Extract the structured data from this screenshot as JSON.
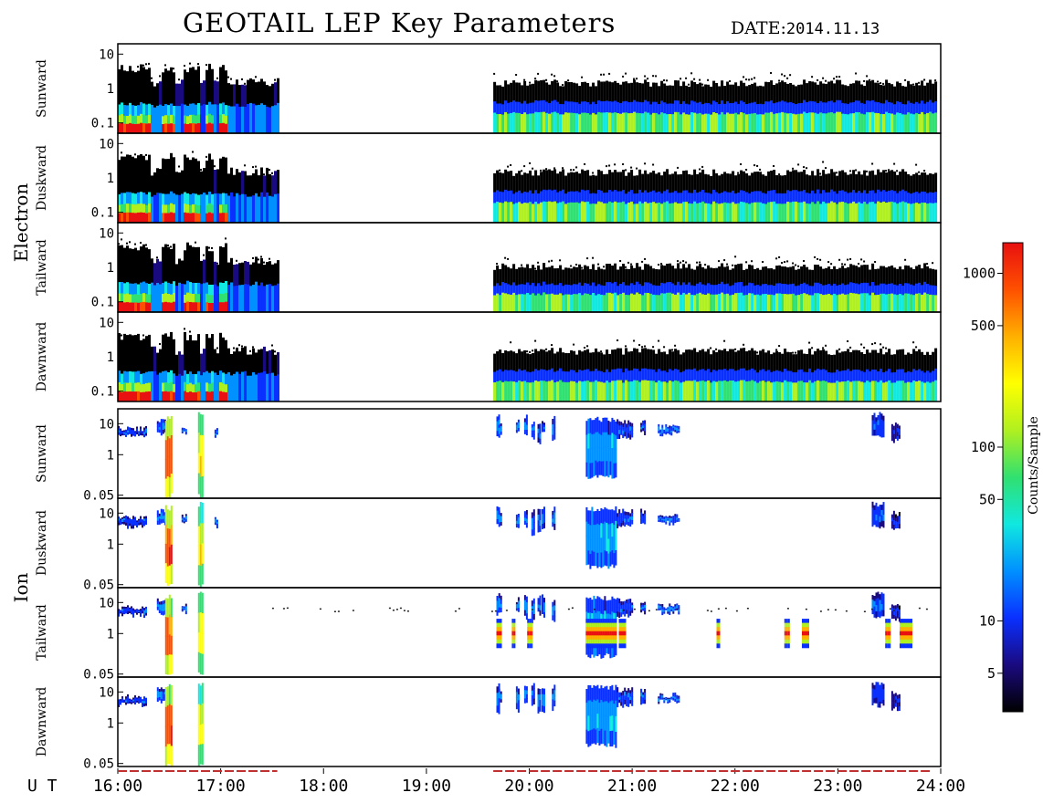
{
  "title": "GEOTAIL LEP Key Parameters",
  "date_label": "DATE:",
  "date_value": "2014.11.13",
  "time_axis_label": "U T",
  "colorbar_label": "Counts/Sample",
  "chart_data": {
    "type": "heatmap",
    "x_range_hours": [
      16,
      24
    ],
    "x_ticks": [
      "16:00",
      "17:00",
      "18:00",
      "19:00",
      "20:00",
      "21:00",
      "22:00",
      "23:00",
      "24:00"
    ],
    "colorbar": {
      "scale": "log",
      "range": [
        3,
        1500
      ],
      "ticks": [
        {
          "value": 5,
          "label": "5"
        },
        {
          "value": 10,
          "label": "10"
        },
        {
          "value": 50,
          "label": "50"
        },
        {
          "value": 100,
          "label": "100"
        },
        {
          "value": 500,
          "label": "500"
        },
        {
          "value": 1000,
          "label": "1000"
        }
      ],
      "colors": [
        "#000000",
        "#1a0a80",
        "#0a30ff",
        "#0090ff",
        "#10e8e0",
        "#30e070",
        "#b0f020",
        "#ffff00",
        "#ffb000",
        "#ff5000",
        "#e81010"
      ]
    },
    "groups": [
      {
        "name": "Electron",
        "y_scale": "log",
        "y_range": [
          0.05,
          20
        ],
        "y_ticks": [
          {
            "value": 10,
            "label": "10"
          },
          {
            "value": 1,
            "label": "1"
          },
          {
            "value": 0.1,
            "label": "0.1"
          }
        ],
        "panels": [
          {
            "name": "Sunward",
            "profile": "e1"
          },
          {
            "name": "Duskward",
            "profile": "e2"
          },
          {
            "name": "Tailward",
            "profile": "e3"
          },
          {
            "name": "Dawnward",
            "profile": "e4"
          }
        ]
      },
      {
        "name": "Ion",
        "y_scale": "log",
        "y_range": [
          0.04,
          30
        ],
        "y_ticks": [
          {
            "value": 10,
            "label": "10"
          },
          {
            "value": 1,
            "label": "1"
          },
          {
            "value": 0.05,
            "label": "0.05"
          }
        ],
        "panels": [
          {
            "name": "Sunward",
            "profile": "i1"
          },
          {
            "name": "Duskward",
            "profile": "i2"
          },
          {
            "name": "Tailward",
            "profile": "i3"
          },
          {
            "name": "Dawnward",
            "profile": "i4"
          }
        ]
      }
    ],
    "data_coverage_hours": [
      [
        16.0,
        17.55
      ],
      [
        19.65,
        24.0
      ]
    ]
  }
}
